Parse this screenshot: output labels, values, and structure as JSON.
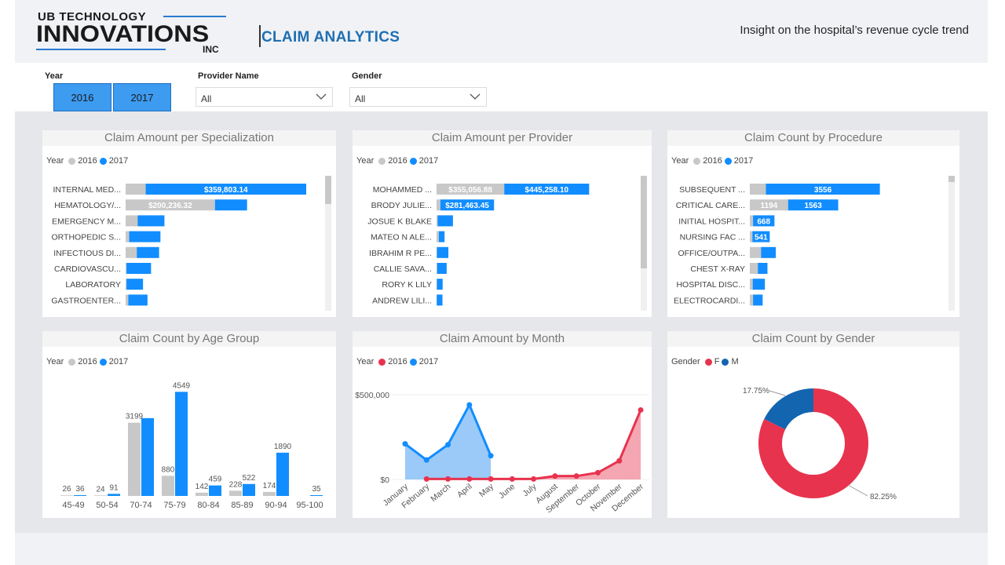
{
  "header": {
    "logo_line1": "UB TECHNOLOGY",
    "logo_line2": "INNOVATIONS",
    "logo_line3": "INC",
    "app_title": "CLAIM ANALYTICS",
    "tagline": "Insight on the hospital’s revenue cycle trend"
  },
  "filters": {
    "year_label": "Year",
    "year_options": [
      "2016",
      "2017"
    ],
    "provider_label": "Provider Name",
    "provider_value": "All",
    "gender_label": "Gender",
    "gender_value": "All"
  },
  "colors": {
    "series_2016_gray": "#c8c8c8",
    "series_2017_blue": "#118dff",
    "series_2016_red": "#e8334e",
    "gender_f": "#e8334e",
    "gender_m": "#1465b0"
  },
  "charts": [
    {
      "type": "bar",
      "orientation": "horizontal",
      "title": "Claim Amount per Specialization",
      "legend_title": "Year",
      "legend": [
        "2016",
        "2017"
      ],
      "categories": [
        "INTERNAL MED...",
        "HEMATOLOGY/...",
        "EMERGENCY M...",
        "ORTHOPEDIC S...",
        "INFECTIOUS DI...",
        "CARDIOVASCU...",
        "LABORATORY",
        "GASTROENTER..."
      ],
      "series": [
        {
          "name": "2016",
          "values": [
            45000,
            200236.32,
            27000,
            8000,
            25000,
            2000,
            2000,
            6000
          ],
          "labels": [
            "",
            "$200,236.32",
            "",
            "",
            "",
            "",
            "",
            ""
          ]
        },
        {
          "name": "2017",
          "values": [
            359803.14,
            72000,
            60000,
            70000,
            50000,
            55000,
            37000,
            43000
          ],
          "labels": [
            "$359,803.14",
            "",
            "",
            "",
            "",
            "",
            "",
            ""
          ]
        }
      ],
      "xlim": [
        0,
        440000
      ]
    },
    {
      "type": "bar",
      "orientation": "horizontal",
      "title": "Claim Amount per Provider",
      "legend_title": "Year",
      "legend": [
        "2016",
        "2017"
      ],
      "categories": [
        "MOHAMMED ...",
        "BRODY JULIE...",
        "JOSUE K BLAKE",
        "MATEO N ALE...",
        "IBRAHIM R PE...",
        "CALLIE SAVA...",
        "RORY K LILY",
        "ANDREW LILI..."
      ],
      "series": [
        {
          "name": "2016",
          "values": [
            355056.88,
            20000,
            6000,
            12000,
            2000,
            3000,
            2000,
            1000
          ],
          "labels": [
            "$355,056.88",
            "",
            "",
            "",
            "",
            "",
            "",
            ""
          ]
        },
        {
          "name": "2017",
          "values": [
            445258.1,
            281463.45,
            80000,
            30000,
            60000,
            50000,
            30000,
            30000
          ],
          "labels": [
            "$445,258.10",
            "$281,463.45",
            "",
            "",
            "",
            "",
            "",
            ""
          ]
        }
      ],
      "xlim": [
        0,
        1050000
      ]
    },
    {
      "type": "bar",
      "orientation": "horizontal",
      "title": "Claim Count by Procedure",
      "legend_title": "Year",
      "legend": [
        "2016",
        "2017"
      ],
      "categories": [
        "SUBSEQUENT ...",
        "CRITICAL CARE...",
        "INITIAL HOSPIT...",
        "NURSING FAC ...",
        "OFFICE/OUTPA...",
        "CHEST X-RAY",
        "HOSPITAL DISC...",
        "ELECTROCARDI..."
      ],
      "series": [
        {
          "name": "2016",
          "values": [
            500,
            1194,
            100,
            80,
            350,
            250,
            90,
            100
          ],
          "labels": [
            "",
            "1194",
            "",
            "",
            "",
            "",
            "",
            ""
          ]
        },
        {
          "name": "2017",
          "values": [
            3556,
            1563,
            668,
            541,
            460,
            300,
            380,
            300
          ],
          "labels": [
            "3556",
            "1563",
            "668",
            "541",
            "",
            "",
            "",
            ""
          ]
        }
      ],
      "xlim": [
        0,
        6000
      ]
    },
    {
      "type": "bar",
      "orientation": "vertical",
      "title": "Claim Count by Age Group",
      "legend_title": "Year",
      "legend": [
        "2016",
        "2017"
      ],
      "categories": [
        "45-49",
        "50-54",
        "70-74",
        "75-79",
        "80-84",
        "85-89",
        "90-94",
        "95-100"
      ],
      "series": [
        {
          "name": "2016",
          "values": [
            26,
            24,
            3199,
            880,
            142,
            228,
            174,
            0
          ],
          "labels": [
            "26",
            "24",
            "3199",
            "880",
            "142",
            "228",
            "174",
            ""
          ]
        },
        {
          "name": "2017",
          "values": [
            36,
            91,
            3400,
            4549,
            459,
            522,
            1890,
            35
          ],
          "labels": [
            "36",
            "91",
            "",
            "4549",
            "459",
            "522",
            "1890",
            "35"
          ]
        }
      ],
      "ylim": [
        0,
        4800
      ]
    },
    {
      "type": "area",
      "title": "Claim Amount by Month",
      "legend_title": "Year",
      "legend": [
        "2016",
        "2017"
      ],
      "categories": [
        "January",
        "February",
        "March",
        "April",
        "May",
        "June",
        "July",
        "August",
        "September",
        "October",
        "November",
        "December"
      ],
      "series": [
        {
          "name": "2016",
          "values": [
            null,
            3000,
            3000,
            3000,
            3000,
            3000,
            3000,
            20000,
            20000,
            40000,
            110000,
            410000
          ]
        },
        {
          "name": "2017",
          "values": [
            210000,
            115000,
            205000,
            440000,
            140000,
            null,
            null,
            null,
            null,
            null,
            null,
            null
          ]
        }
      ],
      "y_tick_labels": [
        "$500,000",
        "$0"
      ],
      "ylim": [
        0,
        500000
      ]
    },
    {
      "type": "pie",
      "title": "Claim Count by Gender",
      "legend_title": "Gender",
      "legend": [
        "F",
        "M"
      ],
      "slices": [
        {
          "name": "F",
          "value": 82.25,
          "label": "82.25%"
        },
        {
          "name": "M",
          "value": 17.75,
          "label": "17.75%"
        }
      ]
    }
  ]
}
